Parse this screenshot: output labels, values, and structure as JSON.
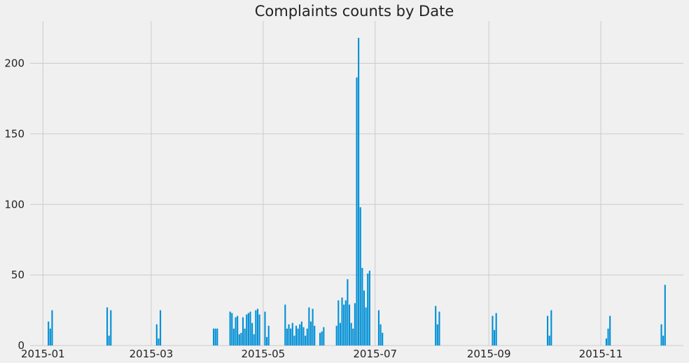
{
  "chart_data": {
    "type": "bar",
    "title": "Complaints counts by Date",
    "xlabel": "",
    "ylabel": "",
    "grid": true,
    "bar_color": "#008fd5",
    "background_color": "#f0f0f0",
    "grid_color": "#cbcbcb",
    "ylim": [
      0,
      230
    ],
    "xlim": [
      "2014-12-25",
      "2015-12-16"
    ],
    "y_ticks": [
      0,
      50,
      100,
      150,
      200
    ],
    "x_ticks": [
      {
        "date": "2015-01-01",
        "label": "2015-01"
      },
      {
        "date": "2015-03-01",
        "label": "2015-03"
      },
      {
        "date": "2015-05-01",
        "label": "2015-05"
      },
      {
        "date": "2015-07-01",
        "label": "2015-07"
      },
      {
        "date": "2015-09-01",
        "label": "2015-09"
      },
      {
        "date": "2015-11-01",
        "label": "2015-11"
      }
    ],
    "series": [
      {
        "x": [
          "2015-01-04",
          "2015-01-05",
          "2015-01-06",
          "2015-02-05",
          "2015-02-06",
          "2015-02-07",
          "2015-03-04",
          "2015-03-05",
          "2015-03-06",
          "2015-04-04",
          "2015-04-05",
          "2015-04-06",
          "2015-04-13",
          "2015-04-14",
          "2015-04-15",
          "2015-04-16",
          "2015-04-17",
          "2015-04-18",
          "2015-04-19",
          "2015-04-20",
          "2015-04-21",
          "2015-04-22",
          "2015-04-23",
          "2015-04-24",
          "2015-04-25",
          "2015-04-26",
          "2015-04-27",
          "2015-04-28",
          "2015-04-29",
          "2015-05-02",
          "2015-05-03",
          "2015-05-04",
          "2015-05-13",
          "2015-05-14",
          "2015-05-15",
          "2015-05-16",
          "2015-05-17",
          "2015-05-18",
          "2015-05-19",
          "2015-05-20",
          "2015-05-21",
          "2015-05-22",
          "2015-05-23",
          "2015-05-24",
          "2015-05-25",
          "2015-05-26",
          "2015-05-27",
          "2015-05-28",
          "2015-05-29",
          "2015-06-01",
          "2015-06-02",
          "2015-06-03",
          "2015-06-10",
          "2015-06-11",
          "2015-06-12",
          "2015-06-13",
          "2015-06-14",
          "2015-06-15",
          "2015-06-16",
          "2015-06-17",
          "2015-06-18",
          "2015-06-19",
          "2015-06-20",
          "2015-06-21",
          "2015-06-22",
          "2015-06-23",
          "2015-06-24",
          "2015-06-25",
          "2015-06-26",
          "2015-06-27",
          "2015-06-28",
          "2015-07-03",
          "2015-07-04",
          "2015-07-05",
          "2015-08-03",
          "2015-08-04",
          "2015-08-05",
          "2015-09-03",
          "2015-09-04",
          "2015-09-05",
          "2015-10-03",
          "2015-10-04",
          "2015-10-05",
          "2015-11-04",
          "2015-11-05",
          "2015-11-06",
          "2015-12-04",
          "2015-12-05",
          "2015-12-06"
        ],
        "values": [
          17,
          12,
          25,
          27,
          7,
          25,
          15,
          5,
          25,
          12,
          12,
          12,
          24,
          23,
          12,
          20,
          21,
          8,
          9,
          20,
          12,
          22,
          23,
          24,
          16,
          8,
          25,
          26,
          22,
          24,
          6,
          14,
          29,
          12,
          15,
          12,
          16,
          7,
          14,
          12,
          15,
          17,
          13,
          7,
          12,
          27,
          17,
          26,
          14,
          9,
          10,
          13,
          14,
          32,
          16,
          34,
          29,
          32,
          47,
          29,
          16,
          12,
          30,
          190,
          218,
          98,
          55,
          39,
          27,
          51,
          53,
          25,
          15,
          9,
          28,
          15,
          24,
          21,
          11,
          23,
          21,
          7,
          25,
          5,
          12,
          21,
          15,
          7,
          43
        ]
      }
    ]
  }
}
